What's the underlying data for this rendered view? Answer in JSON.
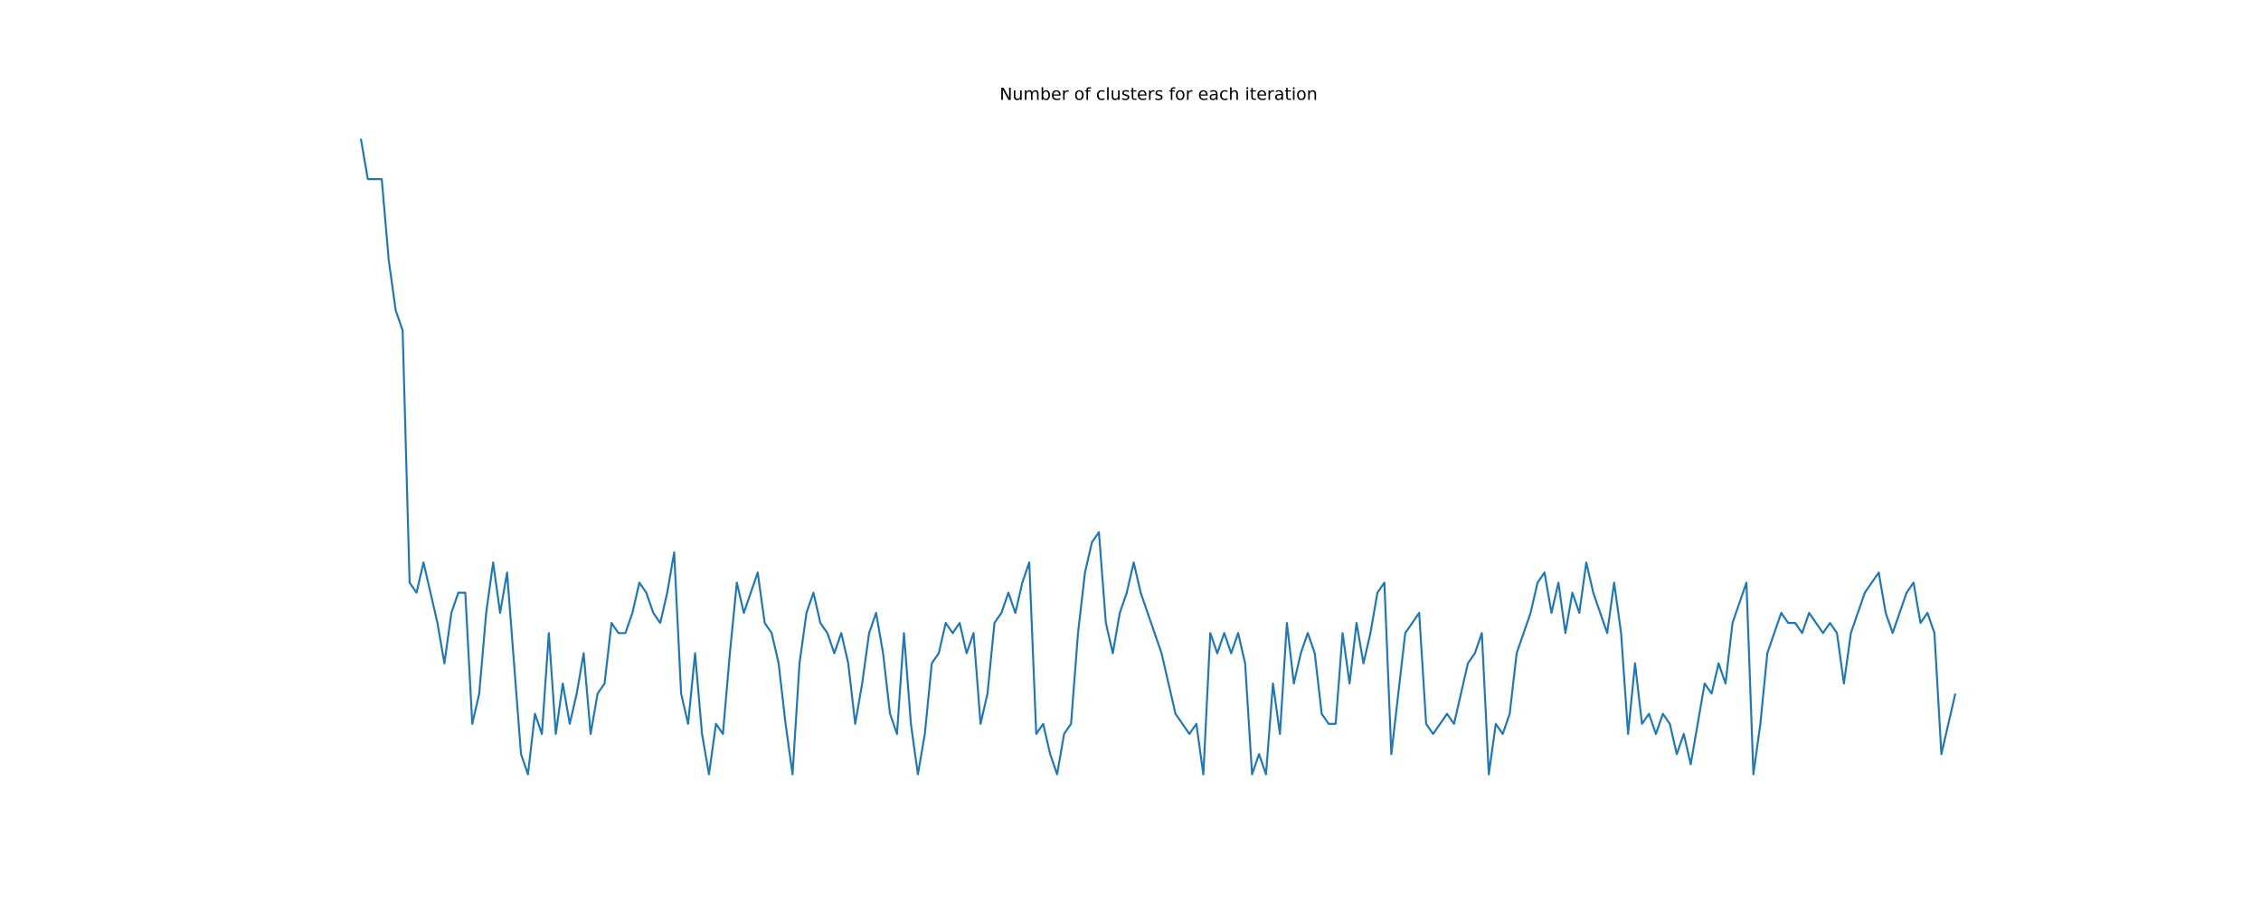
{
  "chart_data": {
    "type": "line",
    "title": "Number of clusters for each iteration",
    "color": "#1f77b4",
    "ylim": [
      -1,
      68
    ],
    "values": [
      65,
      61,
      61,
      61,
      53,
      48,
      46,
      21,
      20,
      23,
      20,
      17,
      13,
      18,
      20,
      20,
      7,
      10,
      18,
      23,
      18,
      22,
      13,
      4,
      2,
      8,
      6,
      16,
      6,
      11,
      7,
      10,
      14,
      6,
      10,
      11,
      17,
      16,
      16,
      18,
      21,
      20,
      18,
      17,
      20,
      24,
      10,
      7,
      14,
      6,
      2,
      7,
      6,
      14,
      21,
      18,
      20,
      22,
      17,
      16,
      13,
      7,
      2,
      13,
      18,
      20,
      17,
      16,
      14,
      16,
      13,
      7,
      11,
      16,
      18,
      14,
      8,
      6,
      16,
      7,
      2,
      6,
      13,
      14,
      17,
      16,
      17,
      14,
      16,
      7,
      10,
      17,
      18,
      20,
      18,
      21,
      23,
      6,
      7,
      4,
      2,
      6,
      7,
      16,
      22,
      25,
      26,
      17,
      14,
      18,
      20,
      23,
      20,
      18,
      16,
      14,
      11,
      8,
      7,
      6,
      7,
      2,
      16,
      14,
      16,
      14,
      16,
      13,
      2,
      4,
      2,
      11,
      6,
      17,
      11,
      14,
      16,
      14,
      8,
      7,
      7,
      16,
      11,
      17,
      13,
      16,
      20,
      21,
      4,
      10,
      16,
      17,
      18,
      7,
      6,
      7,
      8,
      7,
      10,
      13,
      14,
      16,
      2,
      7,
      6,
      8,
      14,
      16,
      18,
      21,
      22,
      18,
      21,
      16,
      20,
      18,
      23,
      20,
      18,
      16,
      21,
      16,
      6,
      13,
      7,
      8,
      6,
      8,
      7,
      4,
      6,
      3,
      7,
      11,
      10,
      13,
      11,
      17,
      19,
      21,
      2,
      7,
      14,
      16,
      18,
      17,
      17,
      16,
      18,
      17,
      16,
      17,
      16,
      11,
      16,
      18,
      20,
      21,
      22,
      18,
      16,
      18,
      20,
      21,
      17,
      18,
      16,
      4,
      7,
      10
    ]
  }
}
